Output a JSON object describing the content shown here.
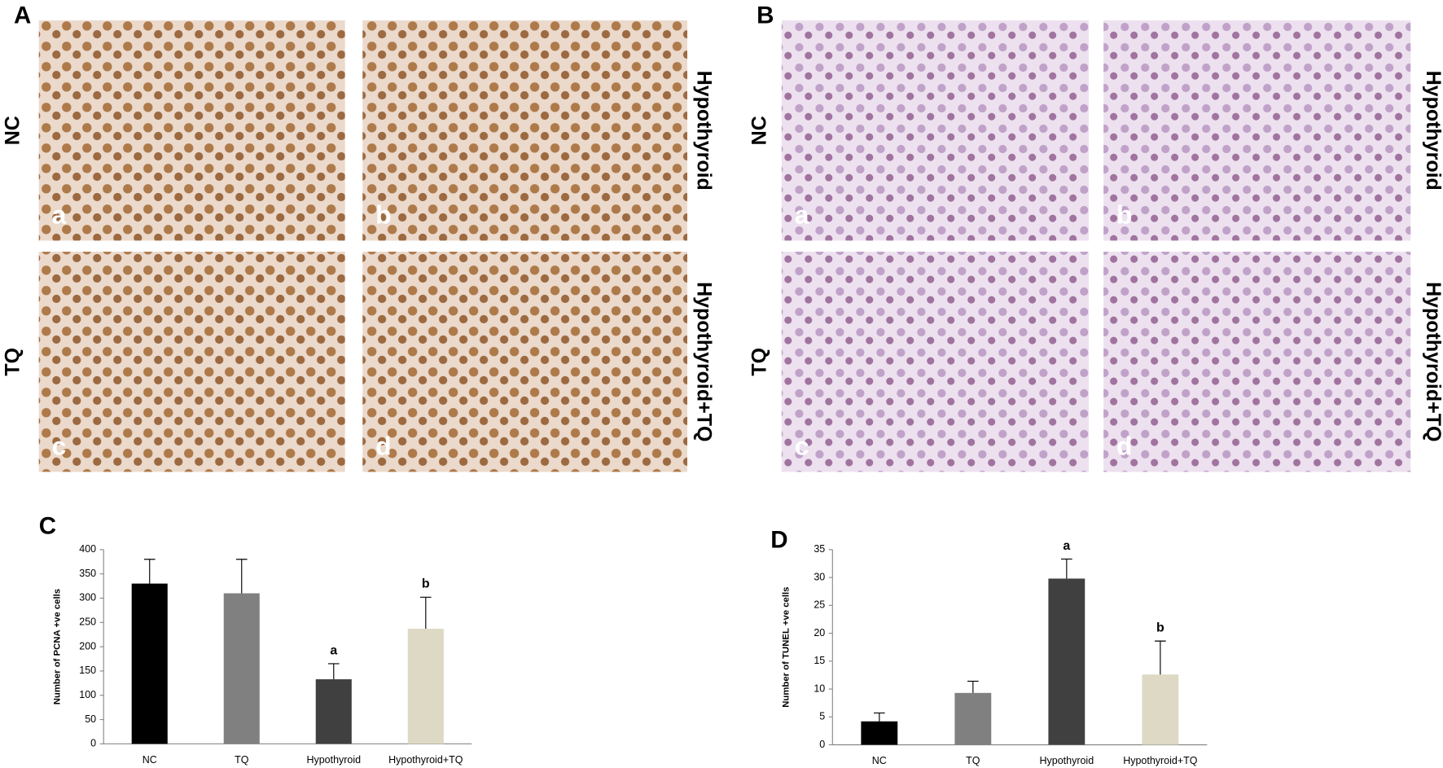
{
  "figure_a": {
    "label": "A",
    "row_labels_left": [
      "NC",
      "TQ"
    ],
    "row_labels_right": [
      "Hypothyroid",
      "Hypothyroid+TQ"
    ],
    "image_letters": [
      "a",
      "b",
      "c",
      "d"
    ]
  },
  "figure_b": {
    "label": "B",
    "row_labels_left": [
      "NC",
      "TQ"
    ],
    "row_labels_right": [
      "Hypothyroid",
      "Hypothyroid+TQ"
    ],
    "image_letters": [
      "a",
      "b",
      "c",
      "d"
    ]
  },
  "chart_data": [
    {
      "type": "bar",
      "panel_label": "C",
      "y_label": "Number of PCNA +ve cells",
      "categories": [
        "NC",
        "TQ",
        "Hypothyroid",
        "Hypothyroid+TQ"
      ],
      "values": [
        330,
        310,
        133,
        237
      ],
      "errors": [
        50,
        70,
        32,
        65
      ],
      "colors": [
        "#000000",
        "#808080",
        "#404040",
        "#ddd9c4"
      ],
      "value_annotations": [
        null,
        null,
        "a",
        "b"
      ],
      "ylim": [
        0,
        400
      ],
      "yticks": [
        0,
        50,
        100,
        150,
        200,
        250,
        300,
        350,
        400
      ],
      "grid": false
    },
    {
      "type": "bar",
      "panel_label": "D",
      "y_label": "Number of TUNEL +ve cells",
      "categories": [
        "NC",
        "TQ",
        "Hypothyroid",
        "Hypothyroid+TQ"
      ],
      "values": [
        4.2,
        9.3,
        29.8,
        12.6
      ],
      "errors": [
        1.5,
        2.1,
        3.5,
        6.0
      ],
      "colors": [
        "#000000",
        "#808080",
        "#404040",
        "#ddd9c4"
      ],
      "value_annotations": [
        null,
        null,
        "a",
        "b"
      ],
      "ylim": [
        0,
        35
      ],
      "yticks": [
        0,
        5,
        10,
        15,
        20,
        25,
        30,
        35
      ],
      "grid": false
    }
  ]
}
